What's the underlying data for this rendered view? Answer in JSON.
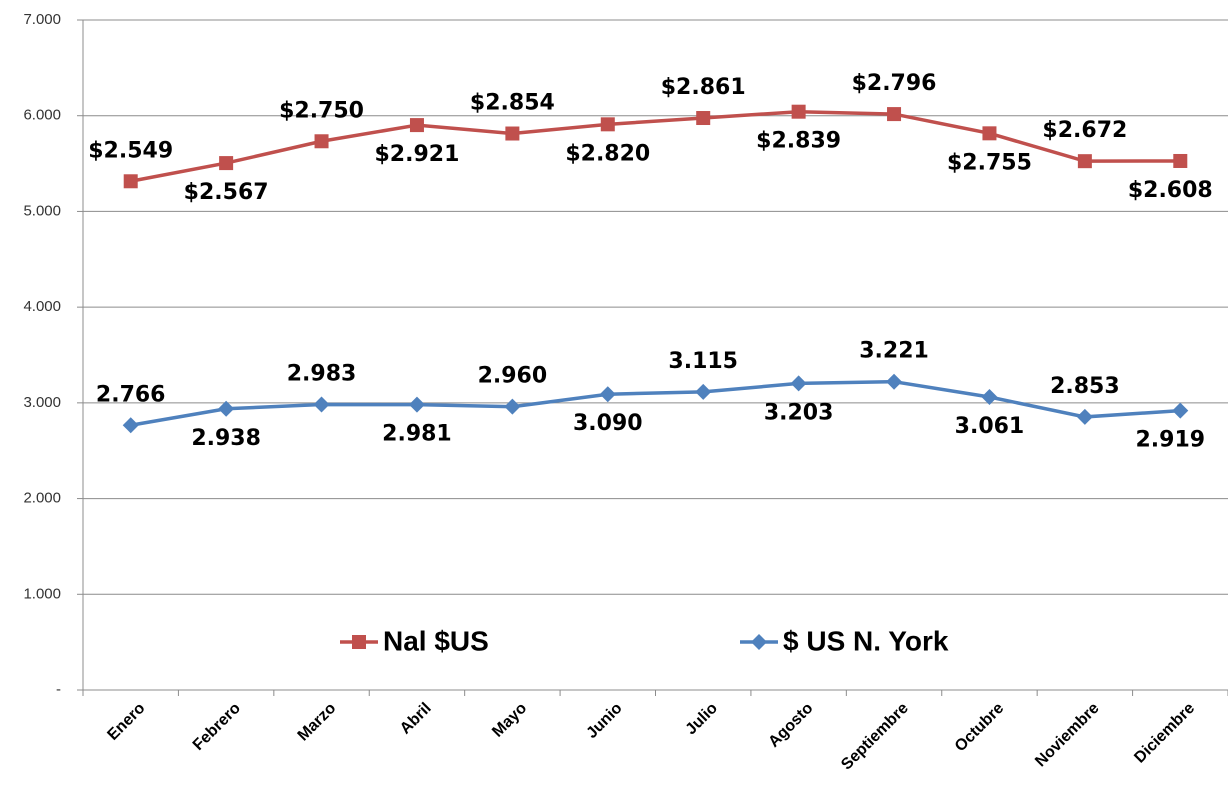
{
  "chart_data": {
    "type": "line",
    "stacked": true,
    "categories": [
      "Enero",
      "Febrero",
      "Marzo",
      "Abril",
      "Mayo",
      "Junio",
      "Julio",
      "Agosto",
      "Septiembre",
      "Octubre",
      "Noviembre",
      "Diciembre"
    ],
    "series": [
      {
        "name": "$ US N. York",
        "color": "#4f81bd",
        "marker": "diamond",
        "values": [
          2.766,
          2.938,
          2.983,
          2.981,
          2.96,
          3.09,
          3.115,
          3.203,
          3.221,
          3.061,
          2.853,
          2.919
        ],
        "value_labels": [
          "2.766",
          "2.938",
          "2.983",
          "2.981",
          "2.960",
          "3.090",
          "3.115",
          "3.203",
          "3.221",
          "3.061",
          "2.853",
          "2.919"
        ]
      },
      {
        "name": "Nal $US",
        "color": "#c0504d",
        "marker": "square",
        "values": [
          2.549,
          2.567,
          2.75,
          2.921,
          2.854,
          2.82,
          2.861,
          2.839,
          2.796,
          2.755,
          2.672,
          2.608
        ],
        "value_labels": [
          "$2.549",
          "$2.567",
          "$2.750",
          "$2.921",
          "$2.854",
          "$2.820",
          "$2.861",
          "$2.839",
          "$2.796",
          "$2.755",
          "$2.672",
          "$2.608"
        ]
      }
    ],
    "ylim": [
      0,
      7
    ],
    "yticks": [
      {
        "value": 0,
        "label": "-"
      },
      {
        "value": 1,
        "label": "1.000"
      },
      {
        "value": 2,
        "label": "2.000"
      },
      {
        "value": 3,
        "label": "3.000"
      },
      {
        "value": 4,
        "label": "4.000"
      },
      {
        "value": 5,
        "label": "5.000"
      },
      {
        "value": 6,
        "label": "6.000"
      },
      {
        "value": 7,
        "label": "7.000"
      }
    ],
    "grid": true,
    "legend": "bottom"
  }
}
